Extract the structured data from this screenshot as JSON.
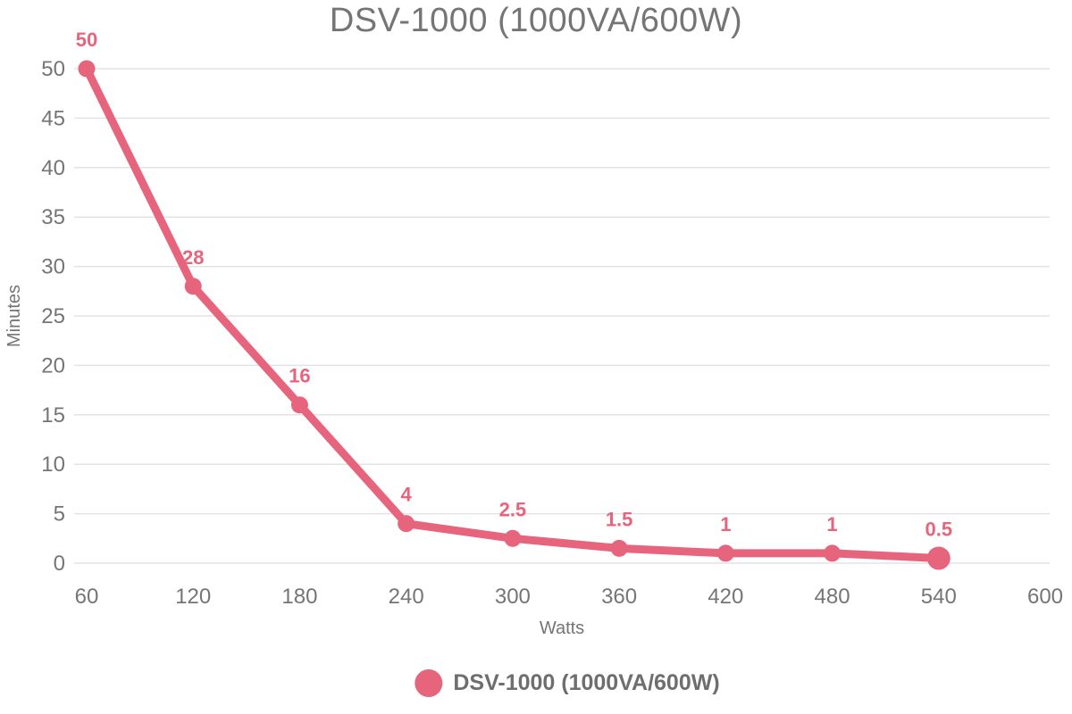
{
  "chart_data": {
    "type": "line",
    "title": "DSV-1000 (1000VA/600W)",
    "xlabel": "Watts",
    "ylabel": "Minutes",
    "series": [
      {
        "name": "DSV-1000 (1000VA/600W)",
        "x": [
          60,
          120,
          180,
          240,
          300,
          360,
          420,
          480,
          540
        ],
        "values": [
          50,
          28,
          16,
          4,
          2.5,
          1.5,
          1,
          1,
          0.5
        ],
        "point_labels": [
          "50",
          "28",
          "16",
          "4",
          "2.5",
          "1.5",
          "1",
          "1",
          "0.5"
        ],
        "color": "#e7647d"
      }
    ],
    "x_ticks": [
      60,
      120,
      180,
      240,
      300,
      360,
      420,
      480,
      540,
      600
    ],
    "y_ticks": [
      0,
      5,
      10,
      15,
      20,
      25,
      30,
      35,
      40,
      45,
      50
    ],
    "xlim": [
      60,
      600
    ],
    "ylim": [
      0,
      50
    ],
    "grid": "horizontal-only",
    "legend_position": "bottom",
    "colors": {
      "line": "#e7647d",
      "title_text": "#757575",
      "axis_text": "#757575",
      "axis_title_text": "#757575",
      "point_label_text": "#e7647d",
      "legend_text": "#6e6e6e",
      "gridline": "#e3e3e3",
      "background": "#ffffff"
    }
  },
  "legend": {
    "items": [
      {
        "label": "DSV-1000 (1000VA/600W)",
        "marker_color": "#e7647d"
      }
    ]
  }
}
